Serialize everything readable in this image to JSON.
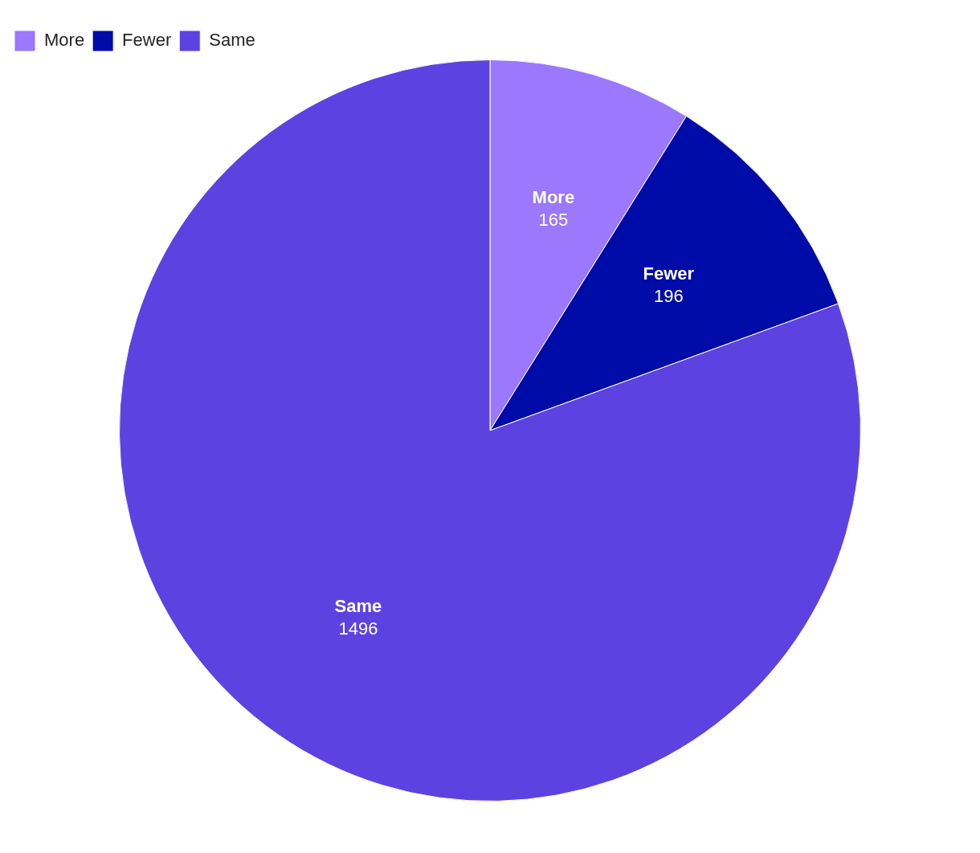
{
  "chart_data": {
    "type": "pie",
    "categories": [
      "More",
      "Fewer",
      "Same"
    ],
    "values": [
      165,
      196,
      1496
    ],
    "colors": [
      "#9b78fd",
      "#000ca8",
      "#5d42e2"
    ],
    "legend": "top left",
    "data_labels": true
  }
}
